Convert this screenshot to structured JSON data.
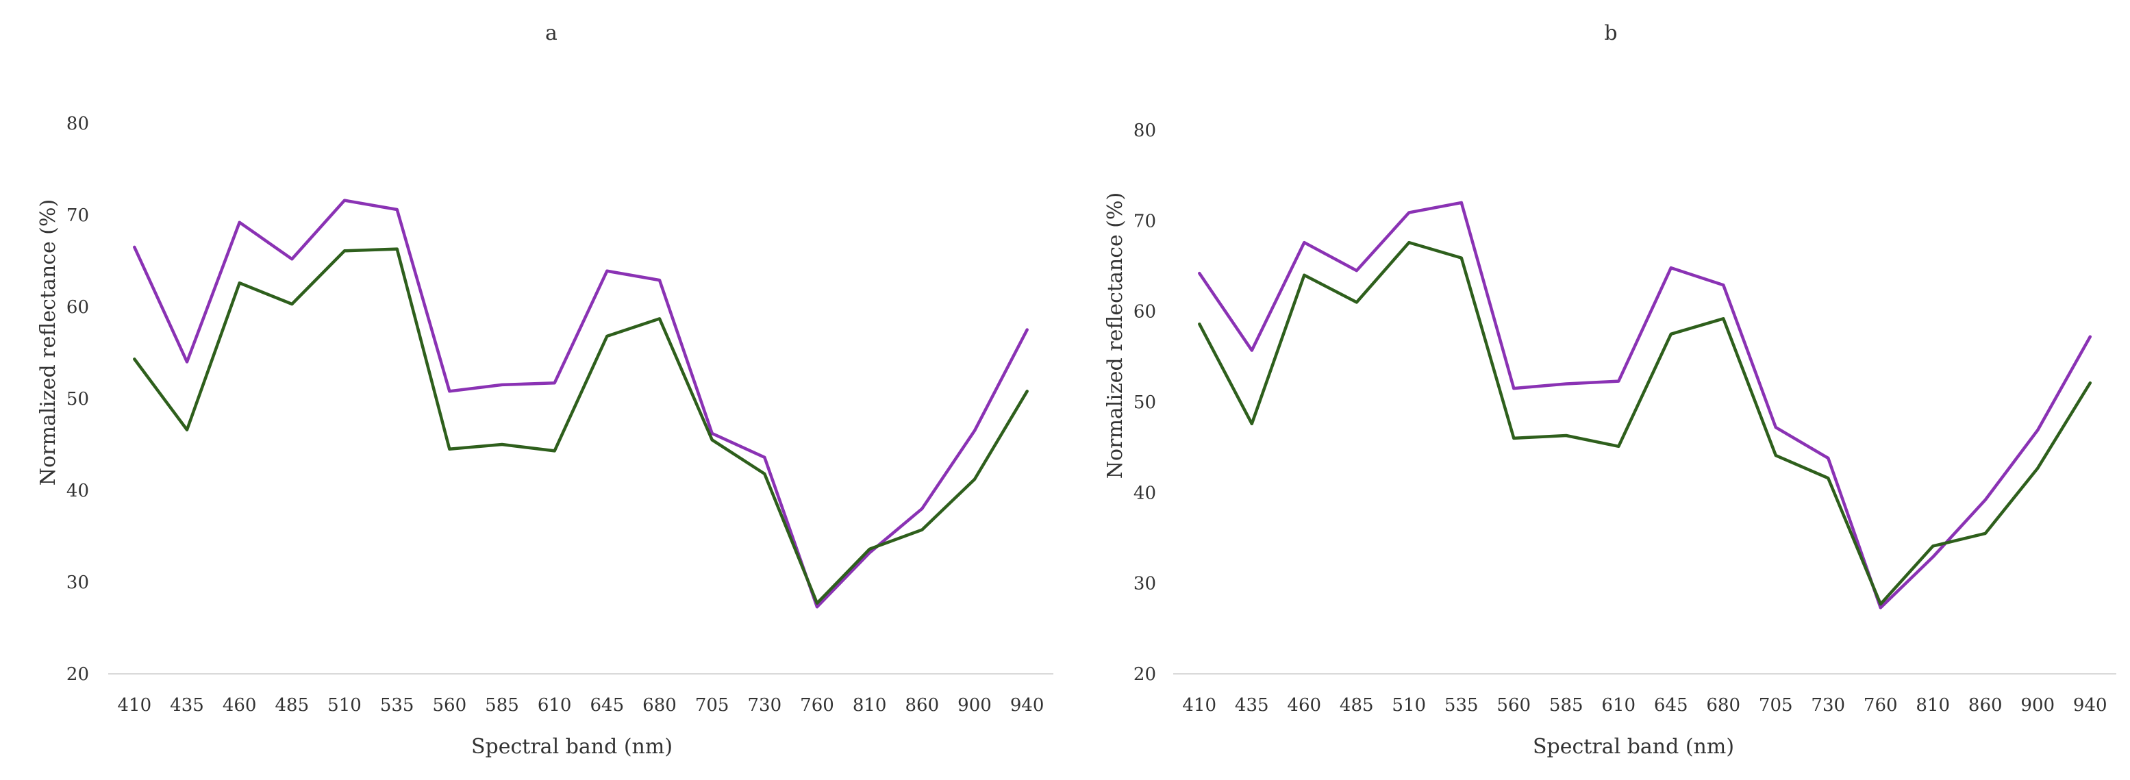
{
  "chart_data": [
    {
      "type": "line",
      "title": "a",
      "xlabel": "Spectral band (nm)",
      "ylabel": "Normalized reflectance (%)",
      "ylim": [
        20,
        80
      ],
      "yticks": [
        20,
        30,
        40,
        50,
        60,
        70,
        80
      ],
      "grid": false,
      "categories": [
        "410",
        "435",
        "460",
        "485",
        "510",
        "535",
        "560",
        "585",
        "610",
        "645",
        "680",
        "705",
        "730",
        "760",
        "810",
        "860",
        "900",
        "940"
      ],
      "series": [
        {
          "name": "purple series",
          "color": "#8a32b4",
          "values": [
            66.5,
            54.0,
            69.2,
            65.2,
            71.6,
            70.6,
            50.8,
            51.5,
            51.7,
            63.9,
            62.9,
            46.2,
            43.6,
            27.3,
            33.2,
            38.0,
            46.5,
            57.5
          ]
        },
        {
          "name": "green series",
          "color": "#2e5f1c",
          "values": [
            54.3,
            46.6,
            62.6,
            60.3,
            66.1,
            66.3,
            44.5,
            45.0,
            44.3,
            56.8,
            58.7,
            45.5,
            41.8,
            27.7,
            33.6,
            35.7,
            41.2,
            50.8
          ]
        }
      ]
    },
    {
      "type": "line",
      "title": "b",
      "xlabel": "Spectral band (nm)",
      "ylabel": "Normalized reflectance (%)",
      "ylim": [
        20,
        80
      ],
      "yticks": [
        20,
        30,
        40,
        50,
        60,
        70,
        80
      ],
      "grid": false,
      "categories": [
        "410",
        "435",
        "460",
        "485",
        "510",
        "535",
        "560",
        "585",
        "610",
        "645",
        "680",
        "705",
        "730",
        "760",
        "810",
        "860",
        "900",
        "940"
      ],
      "series": [
        {
          "name": "purple series",
          "color": "#8a32b4",
          "values": [
            64.2,
            55.7,
            67.6,
            64.5,
            70.9,
            72.0,
            51.5,
            52.0,
            52.3,
            64.8,
            62.9,
            47.2,
            43.8,
            27.3,
            32.9,
            39.2,
            46.9,
            57.2
          ]
        },
        {
          "name": "green series",
          "color": "#2e5f1c",
          "values": [
            58.6,
            47.6,
            64.0,
            61.0,
            67.6,
            65.9,
            46.0,
            46.3,
            45.1,
            57.5,
            59.2,
            44.1,
            41.6,
            27.7,
            34.1,
            35.5,
            42.7,
            52.1
          ]
        }
      ]
    }
  ]
}
